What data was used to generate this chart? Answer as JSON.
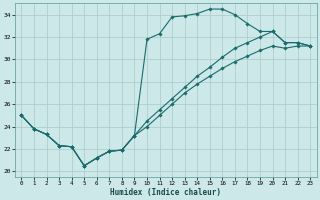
{
  "xlabel": "Humidex (Indice chaleur)",
  "xlim": [
    -0.5,
    23.5
  ],
  "ylim": [
    19.5,
    35.0
  ],
  "xticks": [
    0,
    1,
    2,
    3,
    4,
    5,
    6,
    7,
    8,
    9,
    10,
    11,
    12,
    13,
    14,
    15,
    16,
    17,
    18,
    19,
    20,
    21,
    22,
    23
  ],
  "yticks": [
    20,
    22,
    24,
    26,
    28,
    30,
    32,
    34
  ],
  "bg_color": "#cce8e8",
  "line_color": "#1a6b6b",
  "grid_color": "#b0cece",
  "curve1_x": [
    0,
    1,
    2,
    3,
    4,
    5,
    6,
    7,
    8,
    9,
    10,
    11,
    12,
    13,
    14,
    15,
    16,
    17,
    18,
    19,
    20,
    21,
    22,
    23
  ],
  "curve1_y": [
    25.0,
    23.8,
    23.3,
    22.3,
    22.2,
    20.5,
    21.2,
    21.8,
    21.9,
    23.2,
    31.8,
    32.3,
    33.8,
    33.9,
    34.1,
    34.5,
    34.5,
    34.0,
    33.2,
    32.5,
    32.5,
    31.5,
    31.5,
    31.2
  ],
  "curve2_x": [
    0,
    1,
    2,
    3,
    4,
    5,
    6,
    7,
    8,
    9,
    10,
    11,
    12,
    13,
    14,
    15,
    16,
    17,
    18,
    19,
    20,
    21,
    22,
    23
  ],
  "curve2_y": [
    25.0,
    23.8,
    23.3,
    22.3,
    22.2,
    20.5,
    21.2,
    21.8,
    21.9,
    23.2,
    24.5,
    25.5,
    26.5,
    27.5,
    28.5,
    29.3,
    30.2,
    31.0,
    31.5,
    32.0,
    32.5,
    31.5,
    31.5,
    31.2
  ],
  "curve3_x": [
    0,
    1,
    2,
    3,
    4,
    5,
    6,
    7,
    8,
    9,
    10,
    11,
    12,
    13,
    14,
    15,
    16,
    17,
    18,
    19,
    20,
    21,
    22,
    23
  ],
  "curve3_y": [
    25.0,
    23.8,
    23.3,
    22.3,
    22.2,
    20.5,
    21.2,
    21.8,
    21.9,
    23.2,
    24.0,
    25.0,
    26.0,
    27.0,
    27.8,
    28.5,
    29.2,
    29.8,
    30.3,
    30.8,
    31.2,
    31.0,
    31.2,
    31.2
  ]
}
